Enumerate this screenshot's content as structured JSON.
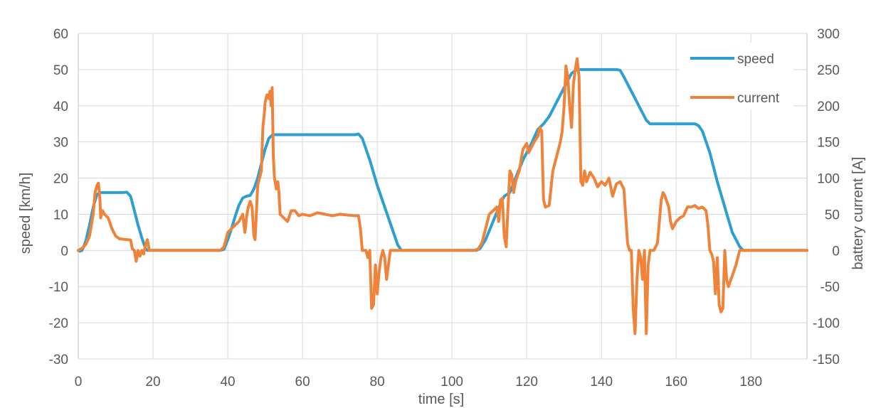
{
  "chart_data": {
    "type": "line",
    "title": "",
    "xlabel": "time [s]",
    "ylabel": "speed [km/h]",
    "y2label": "battery current [A]",
    "xlim": [
      0,
      195
    ],
    "ylim": [
      -30,
      60
    ],
    "y2lim": [
      -150,
      300
    ],
    "xticks": [
      0,
      20,
      40,
      60,
      80,
      100,
      120,
      140,
      160,
      180
    ],
    "yticks": [
      -30,
      -20,
      -10,
      0,
      10,
      20,
      30,
      40,
      50,
      60
    ],
    "y2ticks": [
      -150,
      -100,
      -50,
      0,
      50,
      100,
      150,
      200,
      250,
      300
    ],
    "grid": true,
    "legend": "top-right",
    "series": [
      {
        "name": "speed",
        "axis": "left",
        "color": "#2e9fd3",
        "points": [
          [
            0,
            0
          ],
          [
            0.5,
            -0.2
          ],
          [
            1,
            0
          ],
          [
            2,
            2.5
          ],
          [
            3,
            7
          ],
          [
            4,
            12
          ],
          [
            5,
            15.5
          ],
          [
            6,
            16
          ],
          [
            8,
            16
          ],
          [
            10,
            16
          ],
          [
            12,
            16
          ],
          [
            13,
            16.1
          ],
          [
            14,
            15
          ],
          [
            15,
            11
          ],
          [
            16,
            7
          ],
          [
            17,
            3.5
          ],
          [
            18,
            0.5
          ],
          [
            18.5,
            0
          ],
          [
            20,
            0
          ],
          [
            38,
            0
          ],
          [
            39,
            0.3
          ],
          [
            40,
            3
          ],
          [
            41,
            6
          ],
          [
            42,
            9.5
          ],
          [
            43,
            12.5
          ],
          [
            44,
            14.5
          ],
          [
            45,
            15
          ],
          [
            46,
            15.2
          ],
          [
            47,
            17
          ],
          [
            48,
            20
          ],
          [
            49,
            24
          ],
          [
            50,
            28
          ],
          [
            51,
            31
          ],
          [
            52,
            32
          ],
          [
            55,
            32
          ],
          [
            60,
            32
          ],
          [
            65,
            32
          ],
          [
            70,
            32
          ],
          [
            74,
            32
          ],
          [
            75,
            32.2
          ],
          [
            76,
            31
          ],
          [
            78,
            25
          ],
          [
            80,
            18
          ],
          [
            82,
            12
          ],
          [
            84,
            6
          ],
          [
            85.5,
            1.5
          ],
          [
            86.5,
            0
          ],
          [
            90,
            0
          ],
          [
            100,
            0
          ],
          [
            106.5,
            0
          ],
          [
            107.5,
            0.5
          ],
          [
            109,
            3
          ],
          [
            111,
            8
          ],
          [
            113,
            13
          ],
          [
            114,
            15
          ],
          [
            115.5,
            16
          ],
          [
            117,
            20
          ],
          [
            119,
            25
          ],
          [
            121,
            29
          ],
          [
            123,
            33.5
          ],
          [
            124.5,
            35
          ],
          [
            126,
            37
          ],
          [
            128,
            41
          ],
          [
            130,
            45
          ],
          [
            132,
            49
          ],
          [
            133.5,
            50
          ],
          [
            140,
            50
          ],
          [
            144,
            50
          ],
          [
            145,
            49.8
          ],
          [
            146,
            48
          ],
          [
            148,
            44
          ],
          [
            150,
            40
          ],
          [
            152,
            36
          ],
          [
            153,
            35
          ],
          [
            160,
            35
          ],
          [
            165,
            35
          ],
          [
            166,
            34.5
          ],
          [
            167,
            33
          ],
          [
            169,
            27
          ],
          [
            171,
            19
          ],
          [
            173,
            12
          ],
          [
            175,
            5
          ],
          [
            177,
            1
          ],
          [
            178,
            0
          ],
          [
            185,
            0
          ],
          [
            195,
            0
          ]
        ]
      },
      {
        "name": "current",
        "axis": "right",
        "color": "#f0833a",
        "points": [
          [
            0,
            0
          ],
          [
            1,
            3
          ],
          [
            2,
            8
          ],
          [
            3,
            20
          ],
          [
            4,
            50
          ],
          [
            4.5,
            80
          ],
          [
            5,
            90
          ],
          [
            5.4,
            93
          ],
          [
            5.8,
            70
          ],
          [
            6,
            45
          ],
          [
            6.5,
            55
          ],
          [
            7,
            50
          ],
          [
            8,
            45
          ],
          [
            9,
            30
          ],
          [
            10,
            20
          ],
          [
            11,
            16
          ],
          [
            13,
            15
          ],
          [
            14,
            14.5
          ],
          [
            14.5,
            2
          ],
          [
            15,
            0
          ],
          [
            15.5,
            -15
          ],
          [
            16,
            0
          ],
          [
            16.5,
            -8
          ],
          [
            17,
            0
          ],
          [
            17.5,
            -5
          ],
          [
            18,
            8
          ],
          [
            18.5,
            15
          ],
          [
            19,
            0
          ],
          [
            20,
            0
          ],
          [
            30,
            0
          ],
          [
            38,
            0
          ],
          [
            39,
            5
          ],
          [
            40,
            25
          ],
          [
            41,
            30
          ],
          [
            42,
            35
          ],
          [
            43,
            40
          ],
          [
            44,
            50
          ],
          [
            44.6,
            25
          ],
          [
            45,
            45
          ],
          [
            45.5,
            60
          ],
          [
            46,
            68
          ],
          [
            46.5,
            60
          ],
          [
            47,
            20
          ],
          [
            47.3,
            15
          ],
          [
            47.6,
            45
          ],
          [
            48,
            90
          ],
          [
            48.5,
            100
          ],
          [
            49,
            110
          ],
          [
            49.4,
            170
          ],
          [
            49.8,
            190
          ],
          [
            50,
            205
          ],
          [
            50.5,
            215
          ],
          [
            51,
            210
          ],
          [
            51.3,
            220
          ],
          [
            51.6,
            200
          ],
          [
            51.9,
            225
          ],
          [
            52.2,
            130
          ],
          [
            52.5,
            100
          ],
          [
            53,
            85
          ],
          [
            53.4,
            95
          ],
          [
            53.7,
            80
          ],
          [
            54,
            50
          ],
          [
            55,
            45
          ],
          [
            56,
            40
          ],
          [
            57,
            55
          ],
          [
            58,
            55
          ],
          [
            59,
            48
          ],
          [
            60,
            50
          ],
          [
            62,
            48
          ],
          [
            64,
            52
          ],
          [
            66,
            50
          ],
          [
            68,
            48
          ],
          [
            70,
            50
          ],
          [
            72,
            49
          ],
          [
            74,
            48
          ],
          [
            75,
            48
          ],
          [
            75.5,
            30
          ],
          [
            76,
            0
          ],
          [
            77,
            0
          ],
          [
            77.5,
            -10
          ],
          [
            78,
            0
          ],
          [
            78.5,
            -80
          ],
          [
            79,
            -75
          ],
          [
            79.5,
            -20
          ],
          [
            80,
            -60
          ],
          [
            80.5,
            -30
          ],
          [
            81,
            -10
          ],
          [
            81.5,
            0
          ],
          [
            82,
            -10
          ],
          [
            82.5,
            -40
          ],
          [
            83,
            -20
          ],
          [
            83.5,
            0
          ],
          [
            85,
            0
          ],
          [
            100,
            0
          ],
          [
            106,
            0
          ],
          [
            107,
            2
          ],
          [
            108,
            10
          ],
          [
            109,
            30
          ],
          [
            110,
            50
          ],
          [
            111,
            55
          ],
          [
            112,
            60
          ],
          [
            112.5,
            40
          ],
          [
            113,
            70
          ],
          [
            113.5,
            72
          ],
          [
            114,
            20
          ],
          [
            114.5,
            5
          ],
          [
            115,
            60
          ],
          [
            115.5,
            110
          ],
          [
            116,
            105
          ],
          [
            116.5,
            80
          ],
          [
            117,
            95
          ],
          [
            118,
            110
          ],
          [
            119,
            140
          ],
          [
            120,
            148
          ],
          [
            120.5,
            135
          ],
          [
            121,
            140
          ],
          [
            122,
            150
          ],
          [
            123,
            158
          ],
          [
            123.5,
            170
          ],
          [
            124,
            165
          ],
          [
            124.5,
            70
          ],
          [
            125,
            60
          ],
          [
            126,
            62
          ],
          [
            127,
            110
          ],
          [
            128,
            130
          ],
          [
            129,
            150
          ],
          [
            129.5,
            165
          ],
          [
            130,
            200
          ],
          [
            130.5,
            255
          ],
          [
            131,
            240
          ],
          [
            131.5,
            200
          ],
          [
            132,
            170
          ],
          [
            132.5,
            230
          ],
          [
            133,
            250
          ],
          [
            133.5,
            265
          ],
          [
            134,
            240
          ],
          [
            134.5,
            95
          ],
          [
            135,
            90
          ],
          [
            135.5,
            110
          ],
          [
            136,
            95
          ],
          [
            137,
            108
          ],
          [
            138,
            100
          ],
          [
            139,
            88
          ],
          [
            140,
            95
          ],
          [
            141,
            90
          ],
          [
            142,
            100
          ],
          [
            143,
            75
          ],
          [
            144,
            92
          ],
          [
            145,
            95
          ],
          [
            146,
            85
          ],
          [
            147,
            10
          ],
          [
            147.5,
            0
          ],
          [
            148,
            0
          ],
          [
            148.5,
            -80
          ],
          [
            149,
            -115
          ],
          [
            149.5,
            -40
          ],
          [
            150,
            0
          ],
          [
            150.5,
            -10
          ],
          [
            151,
            -40
          ],
          [
            151.5,
            0
          ],
          [
            152,
            -115
          ],
          [
            152.5,
            -20
          ],
          [
            153,
            0
          ],
          [
            154,
            0
          ],
          [
            155,
            10
          ],
          [
            155.5,
            40
          ],
          [
            156,
            70
          ],
          [
            156.5,
            80
          ],
          [
            157,
            75
          ],
          [
            158,
            60
          ],
          [
            158.5,
            40
          ],
          [
            159,
            30
          ],
          [
            160,
            40
          ],
          [
            161,
            45
          ],
          [
            162,
            48
          ],
          [
            163,
            60
          ],
          [
            164,
            60
          ],
          [
            165,
            62
          ],
          [
            166,
            58
          ],
          [
            167,
            60
          ],
          [
            168,
            55
          ],
          [
            168.5,
            35
          ],
          [
            169,
            0
          ],
          [
            169.5,
            -5
          ],
          [
            170,
            -15
          ],
          [
            170.5,
            -60
          ],
          [
            171,
            -10
          ],
          [
            171.5,
            -75
          ],
          [
            172,
            -85
          ],
          [
            172.5,
            -80
          ],
          [
            173,
            0
          ],
          [
            173.5,
            -40
          ],
          [
            174,
            -50
          ],
          [
            175,
            -35
          ],
          [
            176,
            -20
          ],
          [
            177,
            0
          ],
          [
            178,
            0
          ],
          [
            180,
            0
          ],
          [
            195,
            0
          ]
        ]
      }
    ]
  }
}
